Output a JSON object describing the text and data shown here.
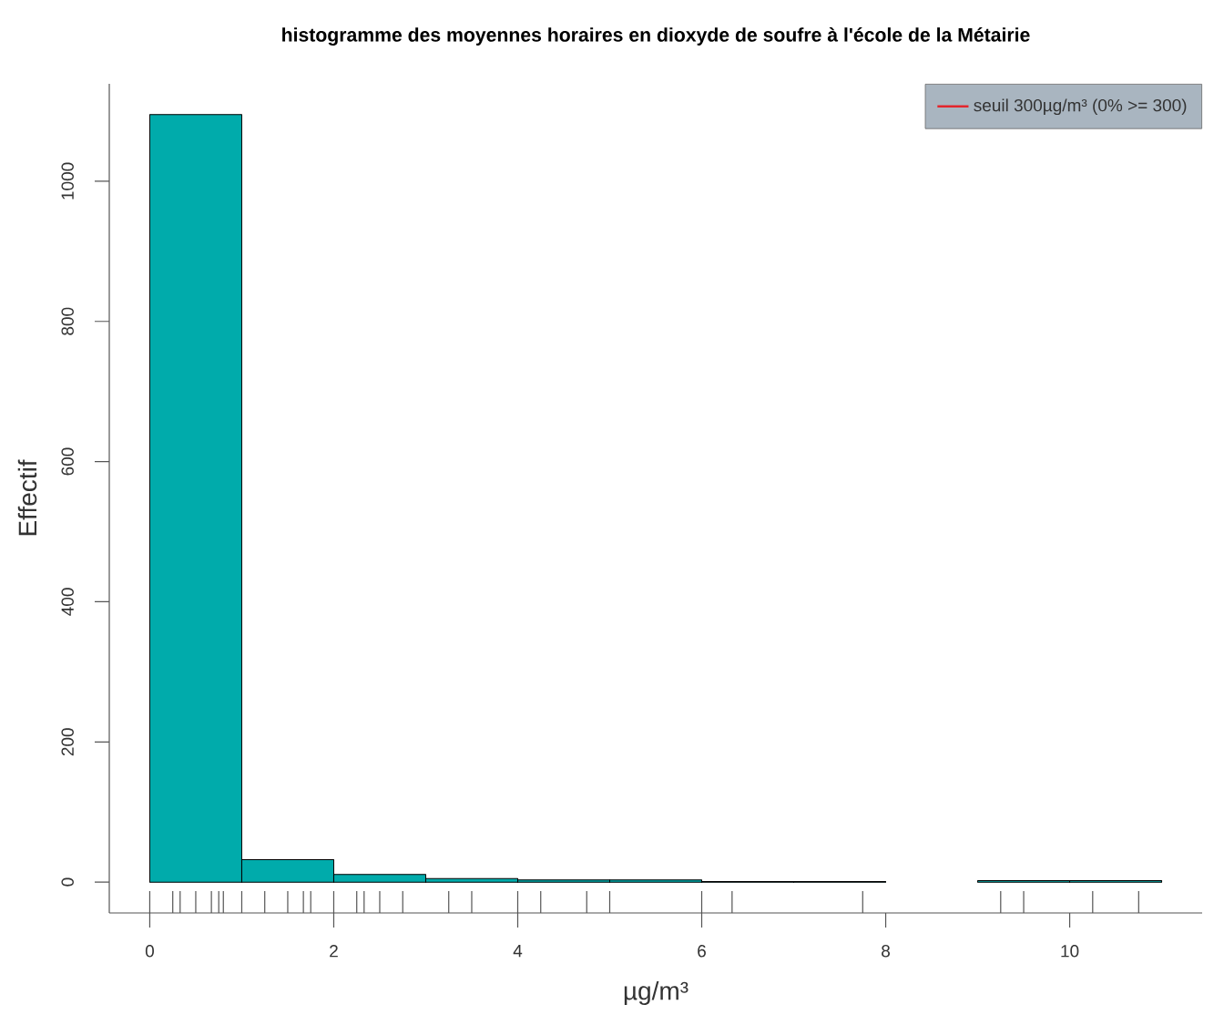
{
  "chart_data": {
    "type": "histogram",
    "title": "histogramme des moyennes horaires en dioxyde de soufre à l'école de la Métairie",
    "xlabel": "µg/m³",
    "ylabel": "Effectif",
    "bins": [
      0,
      1,
      2,
      3,
      4,
      5,
      6,
      7,
      8,
      9,
      10,
      11
    ],
    "values": [
      1095,
      32,
      11,
      5,
      3,
      3,
      1,
      1,
      0,
      2,
      2
    ],
    "color": "#00abab",
    "series": [
      {
        "type": "line",
        "name": "seuil 300µg/m³ (0% >= 300)",
        "color": "#e3262d"
      }
    ],
    "xlim": [
      -0.44,
      11.44
    ],
    "ylim": [
      -44,
      1139
    ],
    "xticks": [
      0,
      {
        "value": 0,
        "label": null
      },
      {
        "value": 0.25,
        "label": null
      },
      {
        "value": 0.33,
        "label": null
      },
      {
        "value": 0.5,
        "label": null
      },
      {
        "value": 0.67,
        "label": null
      },
      {
        "value": 0.75,
        "label": null
      },
      {
        "value": 0.8,
        "label": null
      },
      {
        "value": 1,
        "label": null
      },
      {
        "value": 1.25,
        "label": null
      },
      {
        "value": 1.5,
        "label": null
      },
      {
        "value": 1.67,
        "label": null
      },
      {
        "value": 1.75,
        "label": null
      },
      2,
      {
        "value": 2,
        "label": null
      },
      {
        "value": 2.25,
        "label": null
      },
      {
        "value": 2.33,
        "label": null
      },
      {
        "value": 2.5,
        "label": null
      },
      {
        "value": 2.75,
        "label": null
      },
      {
        "value": 3.25,
        "label": null
      },
      {
        "value": 3.5,
        "label": null
      },
      4,
      {
        "value": 4,
        "label": null
      },
      {
        "value": 4.25,
        "label": null
      },
      {
        "value": 4.75,
        "label": null
      },
      {
        "value": 5,
        "label": null
      },
      6,
      {
        "value": 6,
        "label": null
      },
      {
        "value": 6.33,
        "label": null
      },
      {
        "value": 7.75,
        "label": null
      },
      8,
      {
        "value": 9.25,
        "label": null
      },
      {
        "value": 9.5,
        "label": null
      },
      10,
      {
        "value": 10.25,
        "label": null
      },
      {
        "value": 10.75,
        "label": null
      }
    ],
    "yticks": [
      0,
      200,
      400,
      600,
      800,
      1000
    ],
    "legend": "top right"
  }
}
